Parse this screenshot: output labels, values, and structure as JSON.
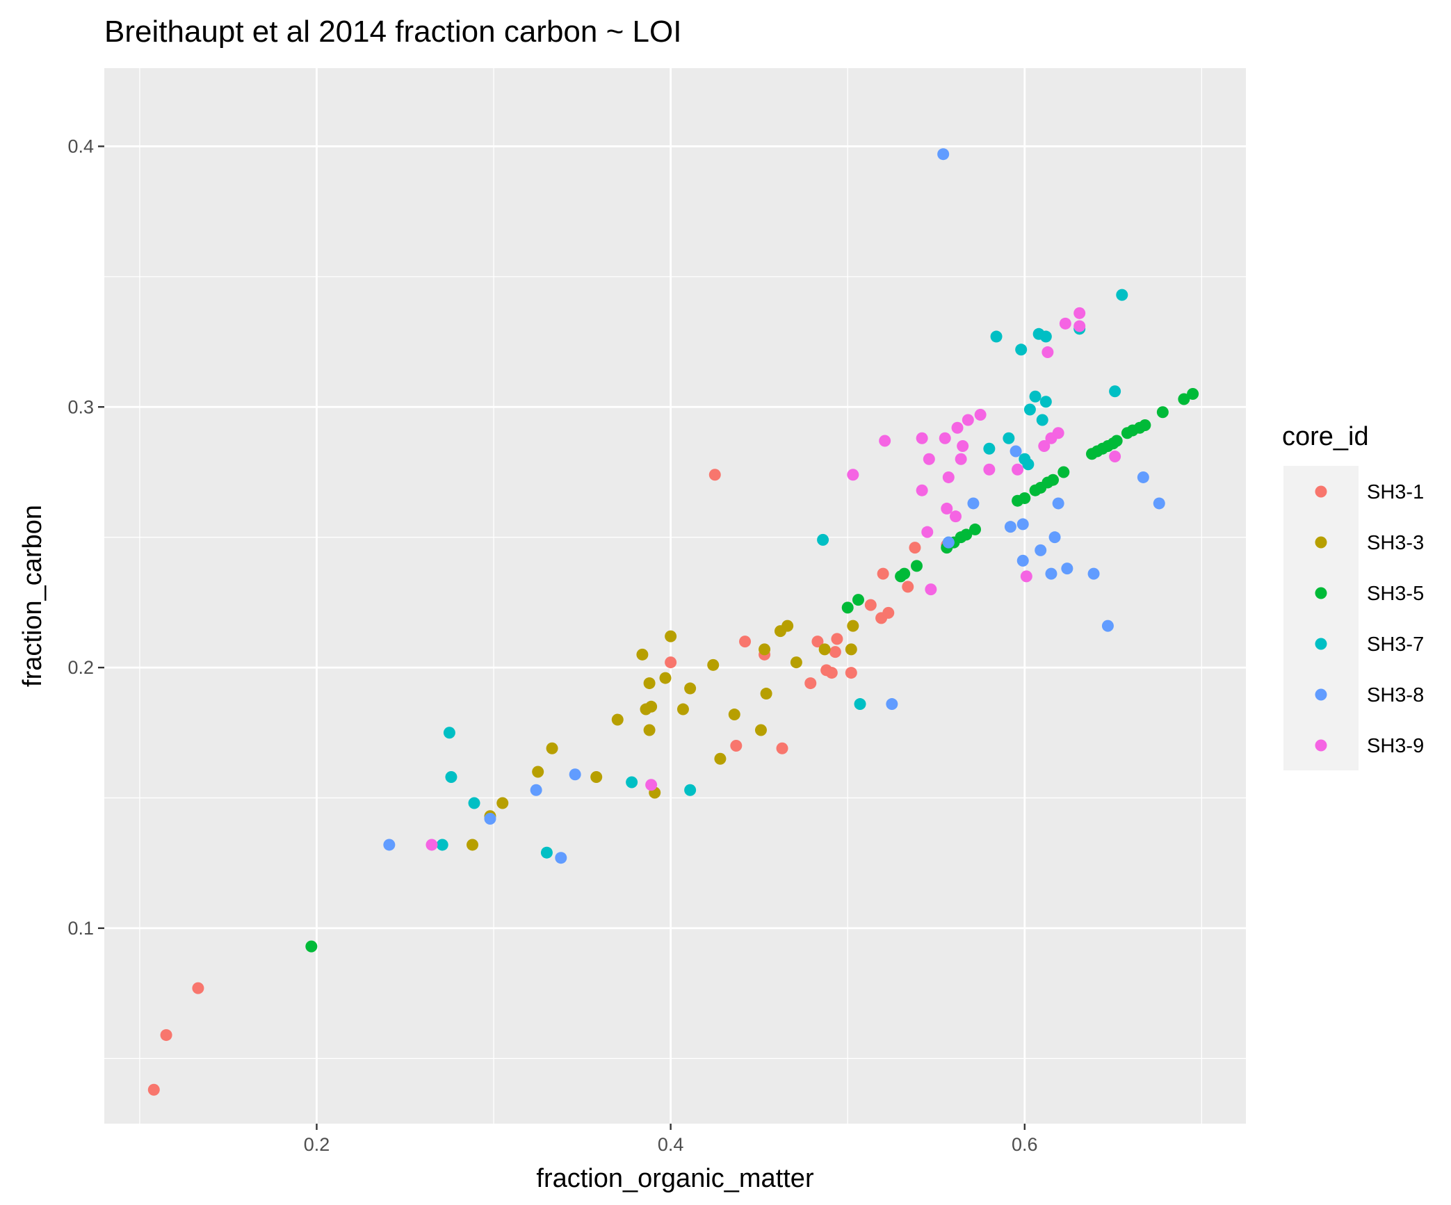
{
  "chart_data": {
    "type": "scatter",
    "title": "Breithaupt et al 2014 fraction carbon ~ LOI",
    "xlabel": "fraction_organic_matter",
    "ylabel": "fraction_carbon",
    "xlim": [
      0.08,
      0.725
    ],
    "ylim": [
      0.025,
      0.43
    ],
    "x_ticks": [
      0.2,
      0.4,
      0.6
    ],
    "x_tick_labels": [
      "0.2",
      "0.4",
      "0.6"
    ],
    "x_minor": [
      0.1,
      0.3,
      0.5,
      0.7
    ],
    "y_ticks": [
      0.1,
      0.2,
      0.3,
      0.4
    ],
    "y_tick_labels": [
      "0.1",
      "0.2",
      "0.3",
      "0.4"
    ],
    "y_minor": [
      0.05,
      0.15,
      0.25,
      0.35
    ],
    "grid": true,
    "legend_title": "core_id",
    "legend_position": "right",
    "series": [
      {
        "name": "SH3-1",
        "color": "#F8766D",
        "points": [
          [
            0.108,
            0.038
          ],
          [
            0.115,
            0.059
          ],
          [
            0.133,
            0.077
          ],
          [
            0.4,
            0.202
          ],
          [
            0.425,
            0.274
          ],
          [
            0.437,
            0.17
          ],
          [
            0.442,
            0.21
          ],
          [
            0.453,
            0.205
          ],
          [
            0.463,
            0.169
          ],
          [
            0.479,
            0.194
          ],
          [
            0.483,
            0.21
          ],
          [
            0.488,
            0.199
          ],
          [
            0.491,
            0.198
          ],
          [
            0.493,
            0.206
          ],
          [
            0.494,
            0.211
          ],
          [
            0.502,
            0.198
          ],
          [
            0.513,
            0.224
          ],
          [
            0.519,
            0.219
          ],
          [
            0.52,
            0.236
          ],
          [
            0.523,
            0.221
          ],
          [
            0.534,
            0.231
          ],
          [
            0.538,
            0.246
          ],
          [
            0.556,
            0.247
          ]
        ]
      },
      {
        "name": "SH3-3",
        "color": "#B79F00",
        "points": [
          [
            0.288,
            0.132
          ],
          [
            0.298,
            0.143
          ],
          [
            0.305,
            0.148
          ],
          [
            0.325,
            0.16
          ],
          [
            0.333,
            0.169
          ],
          [
            0.358,
            0.158
          ],
          [
            0.37,
            0.18
          ],
          [
            0.384,
            0.205
          ],
          [
            0.386,
            0.184
          ],
          [
            0.388,
            0.176
          ],
          [
            0.388,
            0.194
          ],
          [
            0.389,
            0.185
          ],
          [
            0.391,
            0.152
          ],
          [
            0.397,
            0.196
          ],
          [
            0.4,
            0.212
          ],
          [
            0.407,
            0.184
          ],
          [
            0.411,
            0.192
          ],
          [
            0.424,
            0.201
          ],
          [
            0.428,
            0.165
          ],
          [
            0.436,
            0.182
          ],
          [
            0.451,
            0.176
          ],
          [
            0.453,
            0.207
          ],
          [
            0.454,
            0.19
          ],
          [
            0.462,
            0.214
          ],
          [
            0.466,
            0.216
          ],
          [
            0.471,
            0.202
          ],
          [
            0.487,
            0.207
          ],
          [
            0.502,
            0.207
          ],
          [
            0.503,
            0.216
          ]
        ]
      },
      {
        "name": "SH3-5",
        "color": "#00BA38",
        "points": [
          [
            0.197,
            0.093
          ],
          [
            0.5,
            0.223
          ],
          [
            0.506,
            0.226
          ],
          [
            0.53,
            0.235
          ],
          [
            0.532,
            0.236
          ],
          [
            0.539,
            0.239
          ],
          [
            0.556,
            0.246
          ],
          [
            0.56,
            0.248
          ],
          [
            0.564,
            0.25
          ],
          [
            0.567,
            0.251
          ],
          [
            0.572,
            0.253
          ],
          [
            0.596,
            0.264
          ],
          [
            0.6,
            0.265
          ],
          [
            0.606,
            0.268
          ],
          [
            0.609,
            0.269
          ],
          [
            0.613,
            0.271
          ],
          [
            0.616,
            0.272
          ],
          [
            0.622,
            0.275
          ],
          [
            0.638,
            0.282
          ],
          [
            0.641,
            0.283
          ],
          [
            0.644,
            0.284
          ],
          [
            0.647,
            0.285
          ],
          [
            0.65,
            0.286
          ],
          [
            0.652,
            0.287
          ],
          [
            0.658,
            0.29
          ],
          [
            0.661,
            0.291
          ],
          [
            0.665,
            0.292
          ],
          [
            0.668,
            0.293
          ],
          [
            0.678,
            0.298
          ],
          [
            0.69,
            0.303
          ],
          [
            0.695,
            0.305
          ]
        ]
      },
      {
        "name": "SH3-7",
        "color": "#00BFC4",
        "points": [
          [
            0.271,
            0.132
          ],
          [
            0.275,
            0.175
          ],
          [
            0.276,
            0.158
          ],
          [
            0.289,
            0.148
          ],
          [
            0.33,
            0.129
          ],
          [
            0.378,
            0.156
          ],
          [
            0.411,
            0.153
          ],
          [
            0.486,
            0.249
          ],
          [
            0.507,
            0.186
          ],
          [
            0.557,
            0.248
          ],
          [
            0.58,
            0.284
          ],
          [
            0.584,
            0.327
          ],
          [
            0.591,
            0.288
          ],
          [
            0.598,
            0.322
          ],
          [
            0.6,
            0.28
          ],
          [
            0.602,
            0.278
          ],
          [
            0.603,
            0.299
          ],
          [
            0.606,
            0.304
          ],
          [
            0.608,
            0.328
          ],
          [
            0.61,
            0.295
          ],
          [
            0.612,
            0.327
          ],
          [
            0.612,
            0.302
          ],
          [
            0.631,
            0.33
          ],
          [
            0.651,
            0.306
          ],
          [
            0.655,
            0.343
          ]
        ]
      },
      {
        "name": "SH3-8",
        "color": "#619CFF",
        "points": [
          [
            0.241,
            0.132
          ],
          [
            0.298,
            0.142
          ],
          [
            0.324,
            0.153
          ],
          [
            0.338,
            0.127
          ],
          [
            0.346,
            0.159
          ],
          [
            0.525,
            0.186
          ],
          [
            0.554,
            0.397
          ],
          [
            0.557,
            0.248
          ],
          [
            0.571,
            0.263
          ],
          [
            0.592,
            0.254
          ],
          [
            0.595,
            0.283
          ],
          [
            0.599,
            0.255
          ],
          [
            0.599,
            0.241
          ],
          [
            0.609,
            0.245
          ],
          [
            0.615,
            0.236
          ],
          [
            0.617,
            0.25
          ],
          [
            0.619,
            0.263
          ],
          [
            0.624,
            0.238
          ],
          [
            0.639,
            0.236
          ],
          [
            0.647,
            0.216
          ],
          [
            0.667,
            0.273
          ],
          [
            0.676,
            0.263
          ]
        ]
      },
      {
        "name": "SH3-9",
        "color": "#F564E3",
        "points": [
          [
            0.265,
            0.132
          ],
          [
            0.389,
            0.155
          ],
          [
            0.503,
            0.274
          ],
          [
            0.521,
            0.287
          ],
          [
            0.542,
            0.288
          ],
          [
            0.542,
            0.268
          ],
          [
            0.545,
            0.252
          ],
          [
            0.546,
            0.28
          ],
          [
            0.547,
            0.23
          ],
          [
            0.555,
            0.288
          ],
          [
            0.556,
            0.261
          ],
          [
            0.557,
            0.273
          ],
          [
            0.561,
            0.258
          ],
          [
            0.562,
            0.292
          ],
          [
            0.564,
            0.28
          ],
          [
            0.565,
            0.285
          ],
          [
            0.568,
            0.295
          ],
          [
            0.575,
            0.297
          ],
          [
            0.58,
            0.276
          ],
          [
            0.596,
            0.276
          ],
          [
            0.601,
            0.235
          ],
          [
            0.611,
            0.285
          ],
          [
            0.613,
            0.321
          ],
          [
            0.615,
            0.288
          ],
          [
            0.619,
            0.29
          ],
          [
            0.623,
            0.332
          ],
          [
            0.631,
            0.331
          ],
          [
            0.631,
            0.336
          ],
          [
            0.651,
            0.281
          ]
        ]
      }
    ]
  }
}
